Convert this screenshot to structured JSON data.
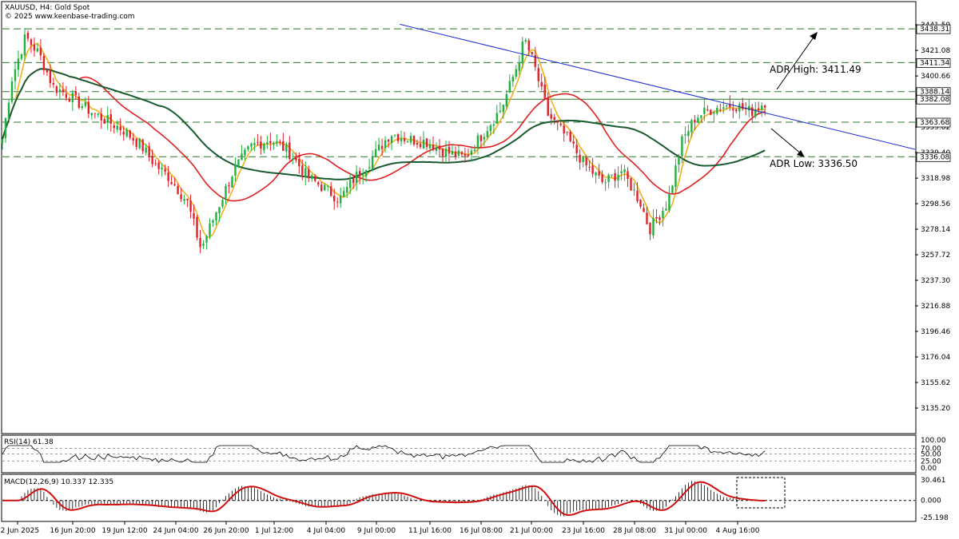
{
  "header": {
    "symbol": "XAUUSD, H4:  Gold Spot",
    "watermark": "© 2025 www.keenbase-trading.com"
  },
  "annotations": {
    "adr_high": "ADR High: 3411.49",
    "adr_low": "ADR Low: 3336.50"
  },
  "colors": {
    "bull": "#20b040",
    "bear": "#e0202a",
    "sma_fast": "#f0b020",
    "sma_mid": "#e02020",
    "sma_slow": "#1a5a30",
    "trendline": "#1a2ad0",
    "level_line": "#2a7a2a",
    "rsi": "#000000",
    "macd_signal": "#d01010",
    "macd_hist": "#000000"
  },
  "chart_data": [
    {
      "type": "candlestick",
      "name": "price",
      "y_ticks": [
        "3441.59",
        "3421.08",
        "3400.66",
        "3380.14",
        "3359.82",
        "3339.40",
        "3318.98",
        "3298.56",
        "3278.14",
        "3257.72",
        "3237.30",
        "3216.88",
        "3196.46",
        "3176.04",
        "3155.62",
        "3135.20"
      ],
      "ylim": [
        3116,
        3449
      ],
      "x_ticks": [
        "12 Jun 2025",
        "16 Jun 20:00",
        "19 Jun 12:00",
        "24 Jun 04:00",
        "26 Jun 20:00",
        "1 Jul 12:00",
        "4 Jul 04:00",
        "9 Jul 00:00",
        "11 Jul 16:00",
        "16 Jul 08:00",
        "21 Jul 00:00",
        "23 Jul 16:00",
        "28 Jul 08:00",
        "31 Jul 00:00",
        "4 Aug 16:00"
      ],
      "horizontal_levels": [
        {
          "label": "3438.31",
          "value": 3438.31,
          "style": "dashed"
        },
        {
          "label": "3411.34",
          "value": 3411.34,
          "style": "dashed"
        },
        {
          "label": "3388.14",
          "value": 3388.14,
          "style": "dashed"
        },
        {
          "label": "3382.08",
          "value": 3382.08,
          "style": "solid"
        },
        {
          "label": "3363.68",
          "value": 3363.68,
          "style": "dashed"
        },
        {
          "label": "3336.08",
          "value": 3336.08,
          "style": "dashed"
        }
      ],
      "trendline": {
        "from": [
          0.43,
          3442
        ],
        "to": [
          0.98,
          3342
        ]
      },
      "anchors": [
        [
          0,
          3350
        ],
        [
          0.01,
          3398
        ],
        [
          0.025,
          3432
        ],
        [
          0.04,
          3418
        ],
        [
          0.055,
          3392
        ],
        [
          0.07,
          3386
        ],
        [
          0.09,
          3375
        ],
        [
          0.11,
          3366
        ],
        [
          0.13,
          3358
        ],
        [
          0.15,
          3345
        ],
        [
          0.165,
          3330
        ],
        [
          0.18,
          3320
        ],
        [
          0.2,
          3300
        ],
        [
          0.215,
          3262
        ],
        [
          0.23,
          3290
        ],
        [
          0.25,
          3325
        ],
        [
          0.27,
          3345
        ],
        [
          0.29,
          3350
        ],
        [
          0.31,
          3340
        ],
        [
          0.33,
          3320
        ],
        [
          0.35,
          3310
        ],
        [
          0.365,
          3302
        ],
        [
          0.38,
          3318
        ],
        [
          0.4,
          3335
        ],
        [
          0.42,
          3355
        ],
        [
          0.44,
          3350
        ],
        [
          0.46,
          3348
        ],
        [
          0.48,
          3340
        ],
        [
          0.5,
          3335
        ],
        [
          0.52,
          3355
        ],
        [
          0.54,
          3375
        ],
        [
          0.555,
          3405
        ],
        [
          0.565,
          3430
        ],
        [
          0.575,
          3410
        ],
        [
          0.59,
          3370
        ],
        [
          0.61,
          3352
        ],
        [
          0.63,
          3330
        ],
        [
          0.65,
          3315
        ],
        [
          0.67,
          3325
        ],
        [
          0.69,
          3300
        ],
        [
          0.7,
          3278
        ],
        [
          0.72,
          3300
        ],
        [
          0.735,
          3348
        ],
        [
          0.75,
          3368
        ],
        [
          0.77,
          3375
        ],
        [
          0.79,
          3378
        ],
        [
          0.81,
          3372
        ],
        [
          0.825,
          3380
        ]
      ],
      "ma_periods": [
        20,
        100,
        200
      ]
    },
    {
      "type": "line",
      "name": "RSI(14) 61.38",
      "y_ticks": [
        "100.00",
        "70.00",
        "50.00",
        "25.00",
        "0.00"
      ],
      "ylim": [
        0,
        100
      ],
      "last_value": 61.38
    },
    {
      "type": "histogram+line",
      "name": "MACD(12,26,9) 10.337 12.335",
      "y_ticks": [
        "30.461",
        "0.000",
        "-25.198"
      ],
      "ylim": [
        -25.198,
        30.461
      ],
      "macd": 10.337,
      "signal": 12.335
    }
  ]
}
